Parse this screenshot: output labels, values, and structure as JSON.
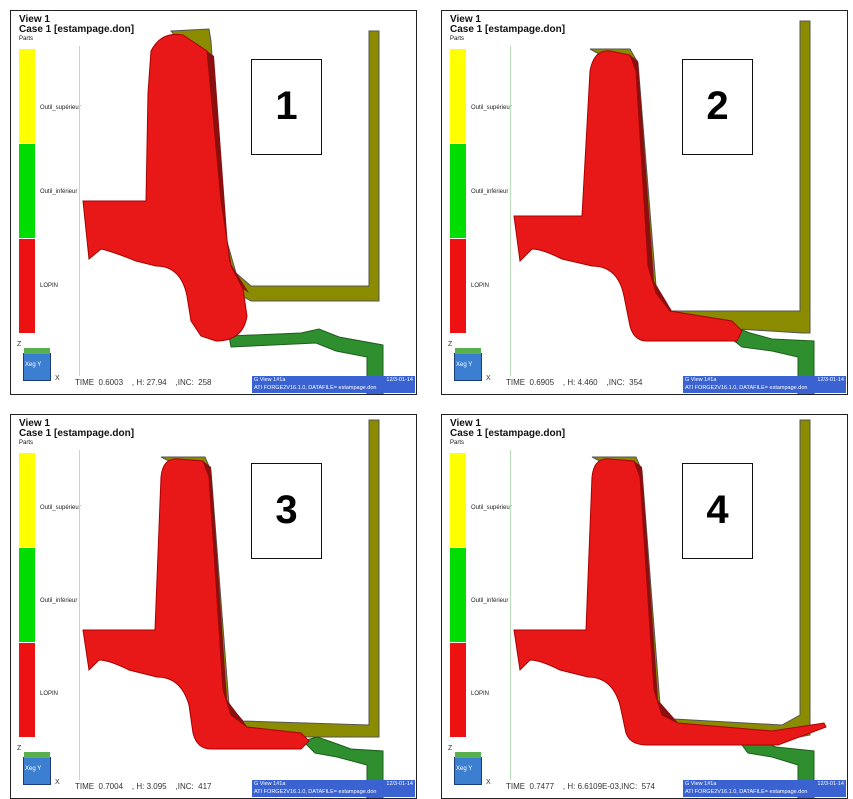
{
  "colors": {
    "upper_tool": "#8b8b00",
    "lower_tool": "#2f8f2f",
    "part": "#e81818",
    "legend_sup": "#ffff00",
    "legend_inf": "#00dd00",
    "legend_lop": "#ee1111",
    "info_bar": "#3a62d0"
  },
  "common": {
    "view": "View 1",
    "case": "Case 1  [estampage.don]",
    "parts": "Parts",
    "legend": [
      "Outil_supérieur",
      "Outil_inférieur",
      "LOPIN"
    ],
    "axis_label": "Xeg Y",
    "axis_z": "Z",
    "axis_x": "X",
    "infobar_line1": "G View 1#1a",
    "infobar_line2": "ATI   FORGE2V16.1.0, DATAFILE= estampage.don",
    "infobar_date": "12/3-01-14"
  },
  "panels": [
    {
      "number": "1",
      "status": "TIME  0.6003    , H: 27.94    ,INC:  258"
    },
    {
      "number": "2",
      "status": "TIME  0.6905    , H: 4.460    ,INC:  354"
    },
    {
      "number": "3",
      "status": "TIME  0.7004    , H: 3.095    ,INC:  417"
    },
    {
      "number": "4",
      "status": "TIME  0.7477    , H: 6.6109E-03,INC:  574"
    }
  ]
}
